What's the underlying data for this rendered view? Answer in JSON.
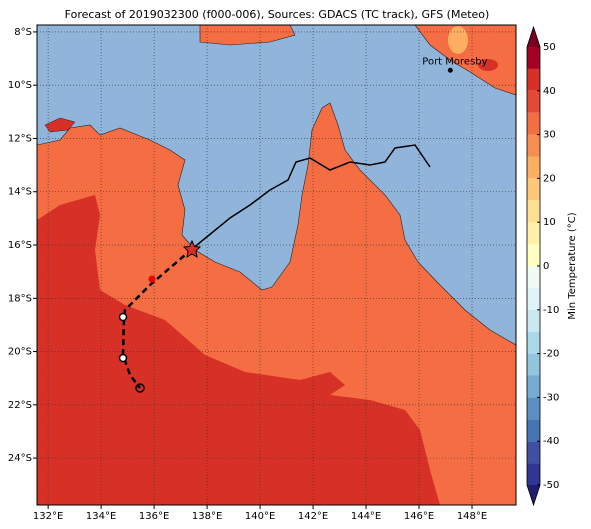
{
  "title": "Forecast of 2019032300 (f000-006), Sources: GDACS (TC track), GFS (Meteo)",
  "map": {
    "lonlim": [
      131.58,
      149.66
    ],
    "latlim": [
      -25.76,
      -7.74
    ],
    "lonticks": [
      {
        "value": 132,
        "label": "132°E"
      },
      {
        "value": 134,
        "label": "134°E"
      },
      {
        "value": 136,
        "label": "136°E"
      },
      {
        "value": 138,
        "label": "138°E"
      },
      {
        "value": 140,
        "label": "140°E"
      },
      {
        "value": 142,
        "label": "142°E"
      },
      {
        "value": 144,
        "label": "144°E"
      },
      {
        "value": 146,
        "label": "146°E"
      },
      {
        "value": 148,
        "label": "148°E"
      }
    ],
    "latticks": [
      {
        "value": -8,
        "label": "8°S"
      },
      {
        "value": -10,
        "label": "10°S"
      },
      {
        "value": -12,
        "label": "12°S"
      },
      {
        "value": -14,
        "label": "14°S"
      },
      {
        "value": -16,
        "label": "16°S"
      },
      {
        "value": -18,
        "label": "18°S"
      },
      {
        "value": -20,
        "label": "20°S"
      },
      {
        "value": -22,
        "label": "22°S"
      },
      {
        "value": -24,
        "label": "24°S"
      }
    ],
    "grid": true,
    "places": [
      {
        "name": "Port Moresby",
        "lon": 147.18,
        "lat": -9.44
      }
    ]
  },
  "colorbar": {
    "label": "Min Temperature (°C)",
    "lim": [
      -50,
      50
    ],
    "ticks": [
      -50,
      -40,
      -30,
      -20,
      -10,
      0,
      10,
      20,
      30,
      40,
      50
    ],
    "colors": [
      "#313695",
      "#3f4fa1",
      "#4575b4",
      "#5b8fc2",
      "#74add1",
      "#92c5de",
      "#abd9e9",
      "#c9e8f1",
      "#e0f3f8",
      "#f2faf4",
      "#ffffbf",
      "#fff1a8",
      "#fee090",
      "#fdc877",
      "#fdae61",
      "#f98e52",
      "#f46d43",
      "#e34a33",
      "#d73027",
      "#a50026"
    ],
    "under_color": "#1f1f6e",
    "over_color": "#7a0020"
  }
}
